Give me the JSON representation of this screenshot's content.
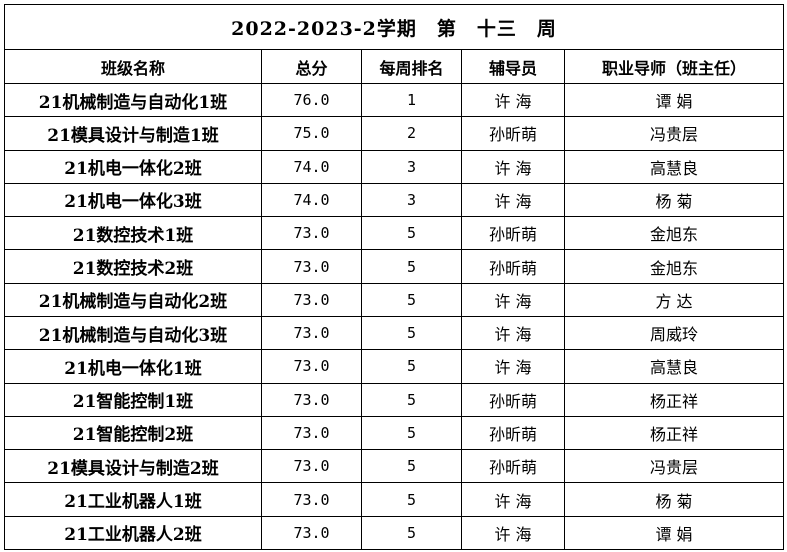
{
  "title": "2022-2023-2学期　第　十三　周",
  "headers": {
    "class_name": "班级名称",
    "total_score": "总分",
    "weekly_rank": "每周排名",
    "counselor": "辅导员",
    "mentor": "职业导师（班主任）"
  },
  "rows": [
    {
      "class_name": "21机械制造与自动化1班",
      "total_score": "76.0",
      "weekly_rank": "1",
      "counselor": "许 海",
      "mentor": "谭 娟"
    },
    {
      "class_name": "21模具设计与制造1班",
      "total_score": "75.0",
      "weekly_rank": "2",
      "counselor": "孙昕萌",
      "mentor": "冯贵层"
    },
    {
      "class_name": "21机电一体化2班",
      "total_score": "74.0",
      "weekly_rank": "3",
      "counselor": "许 海",
      "mentor": "高慧良"
    },
    {
      "class_name": "21机电一体化3班",
      "total_score": "74.0",
      "weekly_rank": "3",
      "counselor": "许 海",
      "mentor": "杨 菊"
    },
    {
      "class_name": "21数控技术1班",
      "total_score": "73.0",
      "weekly_rank": "5",
      "counselor": "孙昕萌",
      "mentor": "金旭东"
    },
    {
      "class_name": "21数控技术2班",
      "total_score": "73.0",
      "weekly_rank": "5",
      "counselor": "孙昕萌",
      "mentor": "金旭东"
    },
    {
      "class_name": "21机械制造与自动化2班",
      "total_score": "73.0",
      "weekly_rank": "5",
      "counselor": "许 海",
      "mentor": "方 达"
    },
    {
      "class_name": "21机械制造与自动化3班",
      "total_score": "73.0",
      "weekly_rank": "5",
      "counselor": "许 海",
      "mentor": "周威玲"
    },
    {
      "class_name": "21机电一体化1班",
      "total_score": "73.0",
      "weekly_rank": "5",
      "counselor": "许 海",
      "mentor": "高慧良"
    },
    {
      "class_name": "21智能控制1班",
      "total_score": "73.0",
      "weekly_rank": "5",
      "counselor": "孙昕萌",
      "mentor": "杨正祥"
    },
    {
      "class_name": "21智能控制2班",
      "total_score": "73.0",
      "weekly_rank": "5",
      "counselor": "孙昕萌",
      "mentor": "杨正祥"
    },
    {
      "class_name": "21模具设计与制造2班",
      "total_score": "73.0",
      "weekly_rank": "5",
      "counselor": "孙昕萌",
      "mentor": "冯贵层"
    },
    {
      "class_name": "21工业机器人1班",
      "total_score": "73.0",
      "weekly_rank": "5",
      "counselor": "许 海",
      "mentor": "杨 菊"
    },
    {
      "class_name": "21工业机器人2班",
      "total_score": "73.0",
      "weekly_rank": "5",
      "counselor": "许 海",
      "mentor": "谭 娟"
    }
  ]
}
